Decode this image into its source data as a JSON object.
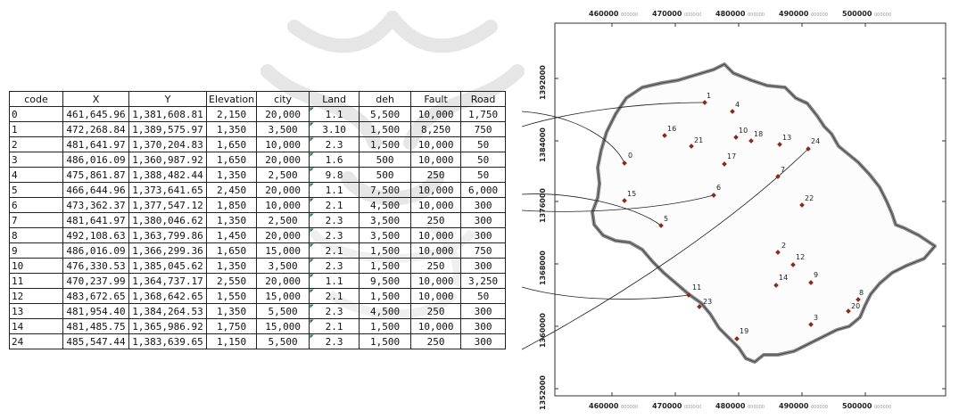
{
  "table": {
    "headers": [
      "code",
      "X",
      "Y",
      "Elevation",
      "city",
      "Land",
      "deh",
      "Fault",
      "Road"
    ],
    "rows": [
      [
        "0",
        "461,645.96",
        "1,381,608.81",
        "2,150",
        "20,000",
        "1.1",
        "5,500",
        "10,000",
        "1,750"
      ],
      [
        "1",
        "472,268.84",
        "1,389,575.97",
        "1,350",
        "3,500",
        "3.10",
        "1,500",
        "8,250",
        "750"
      ],
      [
        "2",
        "481,641.97",
        "1,370,204.83",
        "1,650",
        "10,000",
        "2.3",
        "1,500",
        "10,000",
        "50"
      ],
      [
        "3",
        "486,016.09",
        "1,360,987.92",
        "1,650",
        "20,000",
        "1.6",
        "500",
        "10,000",
        "50"
      ],
      [
        "4",
        "475,861.87",
        "1,388,482.44",
        "1,350",
        "2,500",
        "9.8",
        "500",
        "250",
        "50"
      ],
      [
        "5",
        "466,644.96",
        "1,373,641.65",
        "2,450",
        "20,000",
        "1.1",
        "7,500",
        "10,000",
        "6,000"
      ],
      [
        "6",
        "473,362.37",
        "1,377,547.12",
        "1,850",
        "10,000",
        "2.1",
        "4,500",
        "10,000",
        "300"
      ],
      [
        "7",
        "481,641.97",
        "1,380,046.62",
        "1,350",
        "2,500",
        "2.3",
        "3,500",
        "250",
        "300"
      ],
      [
        "8",
        "492,108.63",
        "1,363,799.86",
        "1,450",
        "20,000",
        "2.3",
        "3,500",
        "10,000",
        "300"
      ],
      [
        "9",
        "486,016.09",
        "1,366,299.36",
        "1,650",
        "15,000",
        "2.1",
        "1,500",
        "10,000",
        "750"
      ],
      [
        "10",
        "476,330.53",
        "1,385,045.62",
        "1,350",
        "3,500",
        "2.3",
        "1,500",
        "250",
        "300"
      ],
      [
        "11",
        "470,237.99",
        "1,364,737.17",
        "2,550",
        "20,000",
        "1.1",
        "9,500",
        "10,000",
        "3,250"
      ],
      [
        "12",
        "483,672.65",
        "1,368,642.65",
        "1,550",
        "15,000",
        "2.1",
        "1,500",
        "10,000",
        "50"
      ],
      [
        "13",
        "481,954.40",
        "1,384,264.53",
        "1,350",
        "5,500",
        "2.3",
        "4,500",
        "250",
        "300"
      ],
      [
        "14",
        "481,485.75",
        "1,365,986.92",
        "1,750",
        "15,000",
        "2.1",
        "1,500",
        "10,000",
        "300"
      ],
      [
        "24",
        "485,547.44",
        "1,383,639.65",
        "1,150",
        "5,500",
        "2.3",
        "1,500",
        "250",
        "300"
      ]
    ]
  },
  "map": {
    "x_ticks": [
      "460000",
      "470000",
      "480000",
      "490000",
      "500000"
    ],
    "y_ticks": [
      "1352000",
      "1360000",
      "1368000",
      "1376000",
      "1384000",
      "1392000"
    ],
    "tick_suffix": "000000",
    "points": [
      {
        "label": "0"
      },
      {
        "label": "1"
      },
      {
        "label": "2"
      },
      {
        "label": "3"
      },
      {
        "label": "4"
      },
      {
        "label": "5"
      },
      {
        "label": "6"
      },
      {
        "label": "7"
      },
      {
        "label": "8"
      },
      {
        "label": "9"
      },
      {
        "label": "10"
      },
      {
        "label": "11"
      },
      {
        "label": "12"
      },
      {
        "label": "13"
      },
      {
        "label": "14"
      },
      {
        "label": "15"
      },
      {
        "label": "16"
      },
      {
        "label": "17"
      },
      {
        "label": "18"
      },
      {
        "label": "19"
      },
      {
        "label": "20"
      },
      {
        "label": "21"
      },
      {
        "label": "22"
      },
      {
        "label": "23"
      },
      {
        "label": "24"
      }
    ],
    "colors": {
      "point": "#8b2a1a",
      "boundary": "#8a8a8a",
      "leader": "#222222"
    }
  }
}
